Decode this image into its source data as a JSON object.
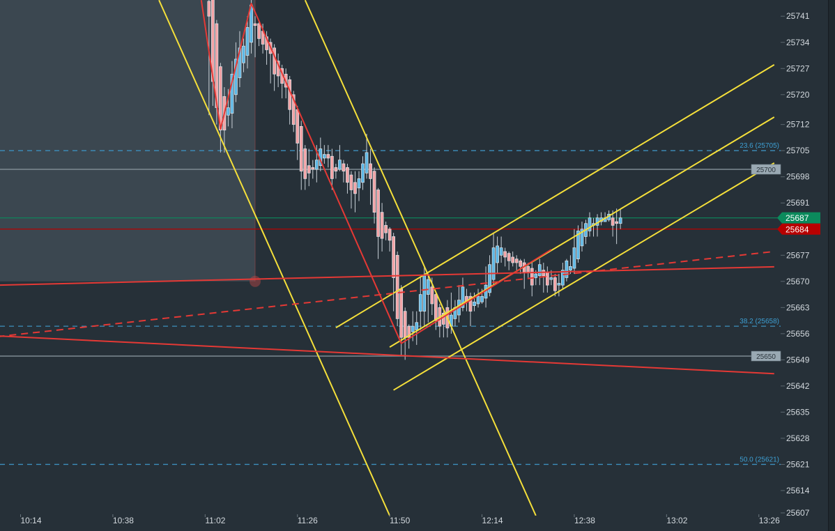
{
  "chart_data": {
    "type": "candlestick",
    "interval": "1m",
    "colors": {
      "background": "#263038",
      "up_body": "#5cb8e6",
      "down_body": "#f2a3a6",
      "wick": "#c9d1d8",
      "fib": "#3d8fbd",
      "trend_yellow": "#f5e03a",
      "trend_red": "#e53935"
    },
    "x_axis": {
      "ticks": [
        "10:14",
        "10:38",
        "11:02",
        "11:26",
        "11:50",
        "12:14",
        "12:38",
        "13:02",
        "13:26"
      ]
    },
    "price_axis": {
      "ticks": [
        "25741",
        "25734",
        "25727",
        "25720",
        "25712",
        "25705",
        "25698",
        "25691",
        "25677",
        "25670",
        "25663",
        "25656",
        "25649",
        "25642",
        "25635",
        "25628",
        "25621",
        "25614",
        "25607"
      ]
    },
    "candles": [
      [
        "11:03",
        25745,
        25750,
        25714.5,
        25741
      ],
      [
        "11:04",
        25746,
        25750,
        25717,
        25723.5
      ],
      [
        "11:05",
        25739,
        25740,
        25712,
        25716.5
      ],
      [
        "11:06",
        25727.5,
        25728.5,
        25704.5,
        25710.5
      ],
      [
        "11:07",
        25719.5,
        25722,
        25704.5,
        25710.5
      ],
      [
        "11:08",
        25714.5,
        25721.5,
        25711.5,
        25716.5
      ],
      [
        "11:09",
        25715,
        25729,
        25711,
        25725.5
      ],
      [
        "11:10",
        25720,
        25734,
        25718,
        25729.5
      ],
      [
        "11:11",
        25724.5,
        25737,
        25722,
        25732.5
      ],
      [
        "11:12",
        25728.5,
        25735,
        25726,
        25733
      ],
      [
        "11:13",
        25730.5,
        25741,
        25727,
        25738
      ],
      [
        "11:14",
        25734,
        25746,
        25731,
        25744
      ],
      [
        "11:15",
        25739,
        25741,
        25730,
        25738.5
      ],
      [
        "11:16",
        25739,
        25740,
        25733,
        25735
      ],
      [
        "11:17",
        25737,
        25739,
        25731,
        25733.5
      ],
      [
        "11:18",
        25735.5,
        25737,
        25728,
        25732
      ],
      [
        "11:19",
        25734,
        25735,
        25723,
        25731
      ],
      [
        "11:20",
        25732.5,
        25733.5,
        25721,
        25725.5
      ],
      [
        "11:21",
        25729,
        25731,
        25722,
        25725
      ],
      [
        "11:22",
        25727,
        25728,
        25719,
        25723
      ],
      [
        "11:23",
        25725.5,
        25727,
        25719,
        25722
      ],
      [
        "11:24",
        25724,
        25725,
        25712,
        25716
      ],
      [
        "11:25",
        25720,
        25721,
        25710,
        25712
      ],
      [
        "11:26",
        25716,
        25717,
        25702.5,
        25707
      ],
      [
        "11:27",
        25711.5,
        25713,
        25694.5,
        25699.5
      ],
      [
        "11:28",
        25705.5,
        25706.5,
        25694.5,
        25697.5
      ],
      [
        "11:29",
        25701,
        25705.5,
        25695.5,
        25699
      ],
      [
        "11:30",
        25700.5,
        25702.5,
        25697.5,
        25700
      ],
      [
        "11:31",
        25700,
        25706.5,
        25696.5,
        25702.5
      ],
      [
        "11:32",
        25701,
        25708.5,
        25699.5,
        25705.5
      ],
      [
        "11:33",
        25703,
        25706.5,
        25701.5,
        25704
      ],
      [
        "11:34",
        25704,
        25706.5,
        25700.5,
        25703
      ],
      [
        "11:35",
        25703.5,
        25705.5,
        25694.5,
        25697.5
      ],
      [
        "11:36",
        25700.5,
        25701.5,
        25697.5,
        25699.5
      ],
      [
        "11:37",
        25700,
        25706.5,
        25699.5,
        25702.5
      ],
      [
        "11:38",
        25701.5,
        25702.5,
        25696.5,
        25699.5
      ],
      [
        "11:39",
        25700.5,
        25701.5,
        25693.5,
        25696.5
      ],
      [
        "11:40",
        25698.5,
        25699.5,
        25689.5,
        25694.5
      ],
      [
        "11:41",
        25696.5,
        25699.5,
        25688.5,
        25693.5
      ],
      [
        "11:42",
        25695,
        25699.5,
        25691.5,
        25697.5
      ],
      [
        "11:43",
        25696.5,
        25703.5,
        25694.5,
        25701.5
      ],
      [
        "11:44",
        25699,
        25709.5,
        25697.5,
        25704.5
      ],
      [
        "11:45",
        25701.5,
        25705.5,
        25690.5,
        25697.5
      ],
      [
        "11:46",
        25699.5,
        25700.5,
        25685.5,
        25688.5
      ],
      [
        "11:47",
        25694.5,
        25695,
        25676,
        25682
      ],
      [
        "11:48",
        25688.5,
        25691,
        25678,
        25681.5
      ],
      [
        "11:49",
        25685,
        25686,
        25681,
        25683
      ],
      [
        "11:50",
        25684,
        25684.5,
        25678,
        25681
      ],
      [
        "11:51",
        25682,
        25683,
        25662,
        25671
      ],
      [
        "11:52",
        25677,
        25678,
        25658,
        25660
      ],
      [
        "11:53",
        25668,
        25669,
        25650,
        25655
      ],
      [
        "11:54",
        25662,
        25663,
        25649,
        25655
      ],
      [
        "11:55",
        25658,
        25658.5,
        25652,
        25655
      ],
      [
        "11:56",
        25656.5,
        25662,
        25654,
        25658
      ],
      [
        "11:57",
        25657,
        25662,
        25653,
        25659
      ],
      [
        "11:58",
        25662,
        25671,
        25657,
        25666.5
      ],
      [
        "11:59",
        25662,
        25674,
        25658,
        25671.5
      ],
      [
        "12:00",
        25666.5,
        25672,
        25659,
        25670.5
      ],
      [
        "12:01",
        25668.5,
        25671,
        25661,
        25664
      ],
      [
        "12:02",
        25666.5,
        25667,
        25657,
        25659.5
      ],
      [
        "12:03",
        25663,
        25664,
        25655,
        25658
      ],
      [
        "12:04",
        25661.5,
        25662,
        25655,
        25658.5
      ],
      [
        "12:05",
        25663,
        25665,
        25655,
        25657.5
      ],
      [
        "12:06",
        25658,
        25667,
        25656,
        25661
      ],
      [
        "12:07",
        25660,
        25665,
        25658,
        25663
      ],
      [
        "12:08",
        25661,
        25669,
        25659,
        25665
      ],
      [
        "12:09",
        25663,
        25671,
        25662,
        25668.5
      ],
      [
        "12:10",
        25666,
        25668,
        25662,
        25664.5
      ],
      [
        "12:11",
        25666,
        25667,
        25658,
        25662
      ],
      [
        "12:12",
        25663.5,
        25667,
        25662,
        25664.5
      ],
      [
        "12:13",
        25664,
        25668,
        25663,
        25666
      ],
      [
        "12:14",
        25664.5,
        25668,
        25664,
        25666
      ],
      [
        "12:15",
        25665.5,
        25674,
        25663,
        25669
      ],
      [
        "12:16",
        25667,
        25677,
        25666,
        25674.5
      ],
      [
        "12:17",
        25670.5,
        25683,
        25669,
        25679
      ],
      [
        "12:18",
        25675,
        25682,
        25672,
        25679.5
      ],
      [
        "12:19",
        25677,
        25682,
        25675,
        25679
      ],
      [
        "12:20",
        25678,
        25679,
        25674,
        25676.5
      ],
      [
        "12:21",
        25677.5,
        25678,
        25673,
        25675.5
      ],
      [
        "12:22",
        25676.5,
        25678,
        25674,
        25675
      ],
      [
        "12:23",
        25676,
        25677,
        25673,
        25675
      ],
      [
        "12:24",
        25675.5,
        25676,
        25672,
        25674
      ],
      [
        "12:25",
        25675,
        25676,
        25668,
        25672.5
      ],
      [
        "12:26",
        25674,
        25675,
        25671,
        25672.5
      ],
      [
        "12:27",
        25673.5,
        25675,
        25666,
        25669
      ],
      [
        "12:28",
        25671,
        25673,
        25669,
        25672
      ],
      [
        "12:29",
        25671.5,
        25676,
        25669,
        25674.5
      ],
      [
        "12:30",
        25673,
        25675,
        25667,
        25671.5
      ],
      [
        "12:31",
        25672.5,
        25674,
        25667,
        25669
      ],
      [
        "12:32",
        25670.5,
        25673,
        25669,
        25671
      ],
      [
        "12:33",
        25671,
        25672,
        25666,
        25667.5
      ],
      [
        "12:34",
        25669,
        25672,
        25666,
        25669.5
      ],
      [
        "12:35",
        25669,
        25675,
        25668,
        25673
      ],
      [
        "12:36",
        25671,
        25676,
        25670,
        25675.5
      ],
      [
        "12:37",
        25673,
        25677,
        25672,
        25674
      ],
      [
        "12:38",
        25673.5,
        25684,
        25672,
        25679
      ],
      [
        "12:39",
        25676,
        25685,
        25675,
        25683.5
      ],
      [
        "12:40",
        25679.5,
        25686,
        25678,
        25684
      ],
      [
        "12:41",
        25682,
        25686.5,
        25680,
        25685.5
      ],
      [
        "12:42",
        25683.5,
        25688.5,
        25682,
        25687
      ],
      [
        "12:43",
        25685,
        25687,
        25682,
        25685.5
      ],
      [
        "12:44",
        25685,
        25688,
        25682,
        25687
      ],
      [
        "12:45",
        25686,
        25688.5,
        25685,
        25687
      ],
      [
        "12:46",
        25686,
        25688.5,
        25686,
        25687
      ],
      [
        "12:47",
        25686.5,
        25689,
        25686,
        25688
      ],
      [
        "12:48",
        25687,
        25689,
        25682,
        25685
      ],
      [
        "12:49",
        25686,
        25689.5,
        25680,
        25685.5
      ],
      [
        "12:50",
        25685.5,
        25689.5,
        25684,
        25687
      ]
    ],
    "shaded_zone": {
      "from_time": "10:08",
      "to_time": "11:15",
      "price_low": 25670,
      "price_high": 25746,
      "color": "#3b4750",
      "edge_color": "#b04a4a"
    },
    "horizontal_lines": [
      {
        "price": 25700,
        "label": "25700",
        "color": "#7f8b93"
      },
      {
        "price": 25650,
        "label": "25650",
        "color": "#7f8b93"
      }
    ],
    "fib_levels": [
      {
        "price": 25705,
        "label": "23.6 (25705)"
      },
      {
        "price": 25658,
        "label": "38.2 (25658)"
      },
      {
        "price": 25621,
        "label": "50.0 (25621)"
      }
    ],
    "price_markers": [
      {
        "price": 25687,
        "label": "25687",
        "color": "#0b8a5c"
      },
      {
        "price": 25684,
        "label": "25684",
        "color": "#b80000"
      }
    ],
    "trend_lines": [
      {
        "color": "#f5e03a",
        "dashed": false,
        "points": [
          [
            "10:50",
            25745.3
          ],
          [
            "11:50",
            25607.3
          ]
        ]
      },
      {
        "color": "#f5e03a",
        "dashed": false,
        "points": [
          [
            "11:28",
            25745.3
          ],
          [
            "12:28",
            25607.3
          ]
        ]
      },
      {
        "color": "#f5e03a",
        "dashed": false,
        "points": [
          [
            "11:36",
            25657.6
          ],
          [
            "13:30",
            25728
          ]
        ]
      },
      {
        "color": "#f5e03a",
        "dashed": false,
        "points": [
          [
            "11:50",
            25652.4
          ],
          [
            "13:30",
            25714
          ]
        ]
      },
      {
        "color": "#f5e03a",
        "dashed": false,
        "points": [
          [
            "11:51",
            25640.9
          ],
          [
            "13:30",
            25701.7
          ]
        ]
      },
      {
        "color": "#e53935",
        "dashed": false,
        "points": [
          [
            "11:01",
            25745.3
          ],
          [
            "11:06",
            25710.8
          ],
          [
            "11:14",
            25744.4
          ],
          [
            "11:53",
            25653.4
          ],
          [
            "12:32",
            25678.5
          ]
        ]
      },
      {
        "color": "#e53935",
        "dashed": false,
        "points": [
          [
            "10:08",
            25669
          ],
          [
            "13:30",
            25673.9
          ]
        ]
      },
      {
        "color": "#e53935",
        "dashed": true,
        "points": [
          [
            "10:08",
            25655.2
          ],
          [
            "13:30",
            25678
          ]
        ]
      },
      {
        "color": "#e53935",
        "dashed": false,
        "points": [
          [
            "10:08",
            25655.4
          ],
          [
            "13:30",
            25645.3
          ]
        ]
      }
    ]
  }
}
